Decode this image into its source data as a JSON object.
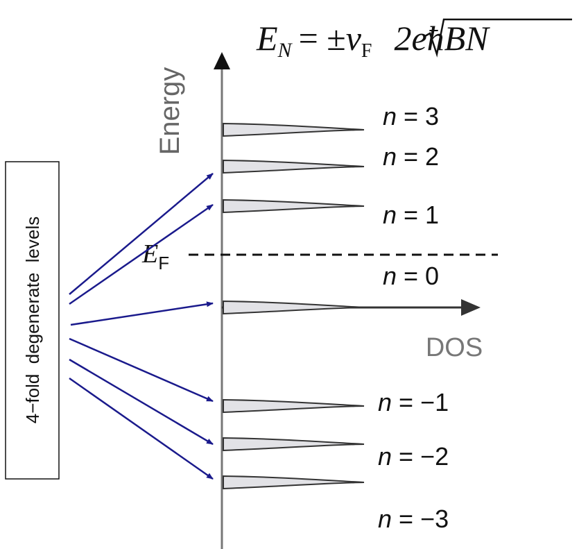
{
  "formula": {
    "lhs": "E",
    "lhs_sub": "N",
    "operator": "= ±",
    "velocity": "v",
    "velocity_sub": "F",
    "radicand": "2eħBN"
  },
  "axes": {
    "y_label": "Energy",
    "x_label": "DOS"
  },
  "fermi": {
    "symbol": "E",
    "sub": "F"
  },
  "box_label": "4−fold  degenerate  levels",
  "levels": [
    {
      "var": "n",
      "rhs": "= 3"
    },
    {
      "var": "n",
      "rhs": "= 2"
    },
    {
      "var": "n",
      "rhs": "= 1"
    },
    {
      "var": "n",
      "rhs": "= 0"
    },
    {
      "var": "n",
      "rhs": "= −1"
    },
    {
      "var": "n",
      "rhs": "= −2"
    },
    {
      "var": "n",
      "rhs": "= −3"
    }
  ]
}
